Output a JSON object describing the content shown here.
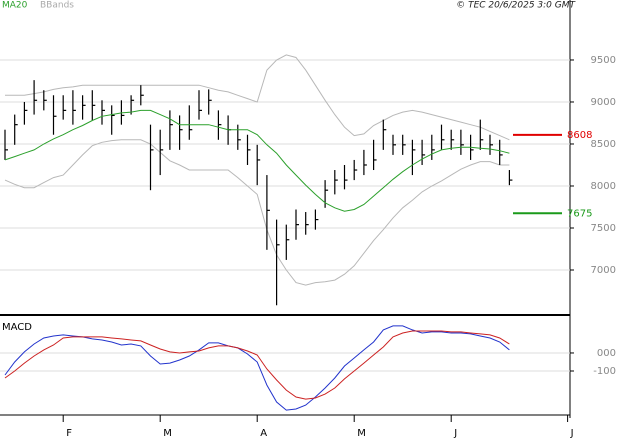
{
  "chart_data": [
    {
      "type": "ohlc",
      "legend": [
        "MA20",
        "BBands"
      ],
      "credit": "© TEC 20/6/2025 3:0 GMT",
      "categories": [
        null,
        null,
        null,
        null,
        null,
        null,
        "F",
        null,
        null,
        null,
        null,
        null,
        null,
        null,
        null,
        null,
        "M",
        null,
        null,
        null,
        null,
        null,
        null,
        null,
        null,
        null,
        "A",
        null,
        null,
        null,
        null,
        null,
        null,
        null,
        null,
        null,
        "M",
        null,
        null,
        null,
        null,
        null,
        null,
        null,
        null,
        null,
        "J",
        null,
        null,
        null,
        null,
        null,
        null,
        null,
        null,
        null,
        null,
        null,
        "J"
      ],
      "high": [
        8670,
        8850,
        9000,
        9260,
        9140,
        9080,
        9080,
        9140,
        9080,
        9140,
        9020,
        8960,
        9020,
        9080,
        9200,
        8730,
        8670,
        8900,
        8840,
        8960,
        9140,
        9150,
        8900,
        8840,
        8730,
        8610,
        8490,
        8130,
        7600,
        7540,
        7720,
        7690,
        7720,
        8070,
        8190,
        8250,
        8310,
        8430,
        8550,
        8790,
        8610,
        8610,
        8550,
        8550,
        8610,
        8730,
        8670,
        8670,
        8610,
        8790,
        8610,
        8550,
        8190,
        null,
        null,
        null,
        null,
        null,
        null
      ],
      "low": [
        8310,
        8490,
        8730,
        8850,
        8900,
        8610,
        8790,
        8730,
        8790,
        8780,
        8730,
        8610,
        8730,
        8850,
        8960,
        7950,
        8130,
        8430,
        8430,
        8550,
        8790,
        8850,
        8550,
        8490,
        8430,
        8250,
        8010,
        7240,
        6580,
        7120,
        7360,
        7420,
        7480,
        7740,
        7900,
        7960,
        8070,
        8130,
        8190,
        8430,
        8370,
        8370,
        8130,
        8250,
        8310,
        8430,
        8430,
        8370,
        8310,
        8430,
        8370,
        8250,
        8010,
        null,
        null,
        null,
        null,
        null,
        null
      ],
      "close": [
        8430,
        8730,
        8900,
        9020,
        9020,
        8830,
        8900,
        8900,
        8960,
        8960,
        8900,
        8840,
        8840,
        9020,
        9080,
        8430,
        8430,
        8730,
        8670,
        8670,
        8900,
        9020,
        8730,
        8670,
        8550,
        8430,
        8310,
        7710,
        7300,
        7360,
        7540,
        7540,
        7600,
        7950,
        8070,
        8070,
        8190,
        8250,
        8310,
        8670,
        8490,
        8490,
        8430,
        8370,
        8430,
        8550,
        8550,
        8490,
        8430,
        8550,
        8490,
        8370,
        8070,
        null,
        null,
        null,
        null,
        null,
        null
      ],
      "series": [
        {
          "name": "MA20",
          "color": "#2ca02c",
          "values": [
            8310,
            8350,
            8390,
            8430,
            8500,
            8560,
            8610,
            8670,
            8720,
            8780,
            8830,
            8850,
            8870,
            8880,
            8900,
            8900,
            8850,
            8800,
            8730,
            8730,
            8730,
            8730,
            8700,
            8670,
            8670,
            8670,
            8610,
            8490,
            8390,
            8250,
            8130,
            8010,
            7900,
            7800,
            7740,
            7700,
            7720,
            7780,
            7880,
            7980,
            8080,
            8170,
            8250,
            8320,
            8380,
            8430,
            8450,
            8460,
            8460,
            8450,
            8440,
            8420,
            8390,
            null,
            null,
            null,
            null,
            null,
            null
          ]
        },
        {
          "name": "BBands",
          "color": "#b8b8b8",
          "upper": [
            9080,
            9080,
            9080,
            9100,
            9120,
            9150,
            9170,
            9180,
            9200,
            9200,
            9200,
            9200,
            9200,
            9200,
            9200,
            9200,
            9200,
            9200,
            9200,
            9200,
            9200,
            9170,
            9140,
            9120,
            9080,
            9040,
            9000,
            9380,
            9500,
            9560,
            9530,
            9380,
            9200,
            9020,
            8850,
            8700,
            8600,
            8620,
            8720,
            8780,
            8840,
            8880,
            8900,
            8880,
            8850,
            8820,
            8790,
            8760,
            8730,
            8700,
            8650,
            8600,
            8550,
            null,
            null,
            null,
            null,
            null,
            null
          ],
          "lower": [
            8070,
            8020,
            7980,
            7980,
            8040,
            8100,
            8130,
            8250,
            8370,
            8480,
            8520,
            8540,
            8550,
            8550,
            8550,
            8500,
            8400,
            8300,
            8250,
            8190,
            8190,
            8190,
            8190,
            8190,
            8100,
            8000,
            7900,
            7480,
            7180,
            7000,
            6850,
            6820,
            6850,
            6860,
            6880,
            6950,
            7050,
            7200,
            7350,
            7480,
            7620,
            7740,
            7830,
            7930,
            8000,
            8060,
            8130,
            8200,
            8250,
            8290,
            8290,
            8250,
            8250,
            null,
            null,
            null,
            null,
            null,
            null
          ]
        }
      ],
      "levels": [
        {
          "value": 8608,
          "color": "#e00000"
        },
        {
          "value": 7675,
          "color": "#1a9a1a"
        }
      ],
      "ylim": [
        6488,
        10214
      ],
      "yticks": [
        7000,
        7500,
        8000,
        8500,
        9000,
        9500
      ],
      "grid": true
    },
    {
      "type": "line",
      "title": "MACD",
      "series": [
        {
          "color": "#2233cc",
          "values": [
            -122,
            -50,
            6,
            50,
            83,
            94,
            100,
            94,
            89,
            78,
            72,
            61,
            44,
            50,
            39,
            -17,
            -61,
            -56,
            -39,
            -17,
            17,
            56,
            56,
            39,
            28,
            -6,
            -50,
            -178,
            -272,
            -317,
            -311,
            -289,
            -244,
            -194,
            -139,
            -72,
            -28,
            17,
            61,
            128,
            150,
            150,
            128,
            111,
            117,
            117,
            111,
            111,
            106,
            94,
            83,
            61,
            17,
            null,
            null,
            null,
            null,
            null,
            null
          ]
        },
        {
          "color": "#cc2222",
          "values": [
            -139,
            -100,
            -56,
            -17,
            17,
            44,
            83,
            89,
            89,
            89,
            89,
            83,
            78,
            72,
            67,
            44,
            22,
            6,
            0,
            6,
            11,
            28,
            39,
            39,
            28,
            11,
            -11,
            -89,
            -150,
            -206,
            -244,
            -256,
            -250,
            -228,
            -194,
            -144,
            -100,
            -56,
            -11,
            33,
            89,
            111,
            122,
            122,
            122,
            122,
            117,
            117,
            111,
            106,
            100,
            83,
            50,
            null,
            null,
            null,
            null,
            null,
            null
          ]
        }
      ],
      "ylim": [
        -344,
        205
      ],
      "yticks": [
        {
          "value": 0,
          "label": "000"
        },
        -100
      ],
      "grid": true
    }
  ]
}
